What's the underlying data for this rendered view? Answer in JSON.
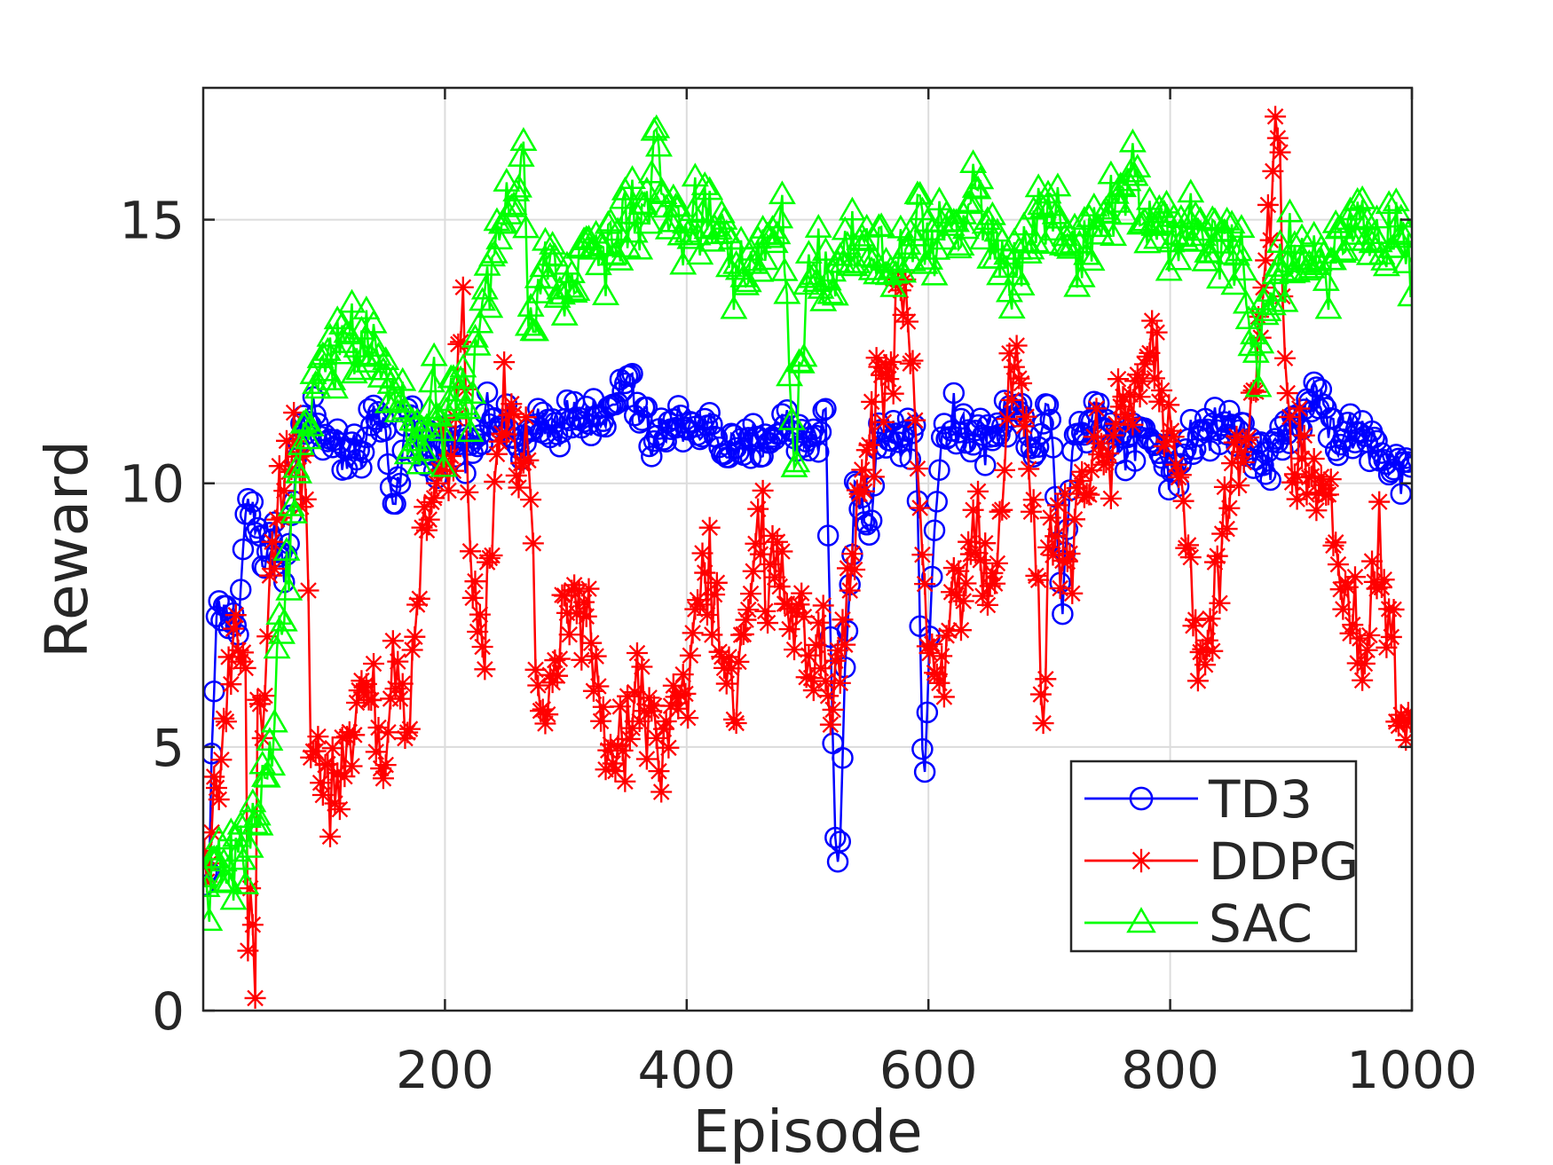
{
  "chart_data": {
    "type": "line",
    "xlabel": "Episode",
    "ylabel": "Reward",
    "xlim": [
      0,
      1000
    ],
    "ylim": [
      0,
      17.5
    ],
    "xticks": [
      200,
      400,
      600,
      800,
      1000
    ],
    "yticks": [
      0,
      5,
      10,
      15
    ],
    "xtick_labels": [
      "200",
      "400",
      "600",
      "800",
      "1000"
    ],
    "ytick_labels": [
      "0",
      "5",
      "10",
      "15"
    ],
    "grid": true,
    "legend_position": "bottom-right",
    "series": [
      {
        "name": "TD3",
        "color": "#0000ff",
        "marker": "circle",
        "anchors": [
          [
            1,
            2.3
          ],
          [
            5,
            3.0
          ],
          [
            8,
            5.5
          ],
          [
            11,
            7.5
          ],
          [
            20,
            7.5
          ],
          [
            30,
            7.3
          ],
          [
            35,
            9.5
          ],
          [
            40,
            9.8
          ],
          [
            50,
            8.5
          ],
          [
            60,
            9.0
          ],
          [
            70,
            8.5
          ],
          [
            80,
            11.0
          ],
          [
            90,
            11.3
          ],
          [
            100,
            10.8
          ],
          [
            110,
            10.5
          ],
          [
            120,
            10.7
          ],
          [
            130,
            10.2
          ],
          [
            140,
            11.5
          ],
          [
            150,
            11.0
          ],
          [
            160,
            9.6
          ],
          [
            170,
            11.5
          ],
          [
            180,
            10.5
          ],
          [
            200,
            10.8
          ],
          [
            220,
            10.8
          ],
          [
            240,
            11.3
          ],
          [
            260,
            10.7
          ],
          [
            280,
            11.0
          ],
          [
            300,
            11.2
          ],
          [
            310,
            11.5
          ],
          [
            330,
            11.0
          ],
          [
            350,
            12.0
          ],
          [
            370,
            10.8
          ],
          [
            400,
            11.2
          ],
          [
            420,
            11.0
          ],
          [
            440,
            10.5
          ],
          [
            460,
            10.8
          ],
          [
            480,
            11.1
          ],
          [
            500,
            10.8
          ],
          [
            515,
            11.2
          ],
          [
            520,
            6.0
          ],
          [
            524,
            2.2
          ],
          [
            527,
            3.2
          ],
          [
            530,
            6.0
          ],
          [
            540,
            10.2
          ],
          [
            550,
            9.0
          ],
          [
            560,
            11.0
          ],
          [
            580,
            10.8
          ],
          [
            590,
            11.0
          ],
          [
            595,
            5.0
          ],
          [
            598,
            4.5
          ],
          [
            600,
            7.0
          ],
          [
            610,
            11.0
          ],
          [
            630,
            11.1
          ],
          [
            650,
            10.8
          ],
          [
            670,
            11.4
          ],
          [
            690,
            10.8
          ],
          [
            700,
            11.5
          ],
          [
            710,
            7.8
          ],
          [
            720,
            11.0
          ],
          [
            740,
            11.3
          ],
          [
            760,
            10.8
          ],
          [
            780,
            11.1
          ],
          [
            800,
            10.2
          ],
          [
            820,
            10.8
          ],
          [
            840,
            11.2
          ],
          [
            860,
            11.0
          ],
          [
            880,
            10.5
          ],
          [
            900,
            11.0
          ],
          [
            920,
            11.8
          ],
          [
            940,
            10.8
          ],
          [
            960,
            11.0
          ],
          [
            980,
            10.2
          ],
          [
            1000,
            10.3
          ]
        ],
        "noise": 0.45,
        "step": 2
      },
      {
        "name": "DDPG",
        "color": "#ff0000",
        "marker": "asterisk",
        "anchors": [
          [
            1,
            2.3
          ],
          [
            8,
            3.0
          ],
          [
            15,
            5.5
          ],
          [
            25,
            6.5
          ],
          [
            30,
            7.0
          ],
          [
            35,
            6.5
          ],
          [
            38,
            -1.5
          ],
          [
            40,
            6.0
          ],
          [
            42,
            -1.5
          ],
          [
            45,
            5.0
          ],
          [
            55,
            8.0
          ],
          [
            65,
            10.0
          ],
          [
            75,
            11.0
          ],
          [
            85,
            10.0
          ],
          [
            90,
            5.0
          ],
          [
            100,
            4.5
          ],
          [
            110,
            4.0
          ],
          [
            120,
            4.8
          ],
          [
            130,
            5.5
          ],
          [
            140,
            6.0
          ],
          [
            150,
            4.5
          ],
          [
            160,
            7.0
          ],
          [
            170,
            5.0
          ],
          [
            180,
            9.0
          ],
          [
            190,
            9.5
          ],
          [
            200,
            10.2
          ],
          [
            210,
            11.5
          ],
          [
            215,
            13.3
          ],
          [
            220,
            9.0
          ],
          [
            230,
            6.8
          ],
          [
            240,
            9.5
          ],
          [
            250,
            11.5
          ],
          [
            260,
            10.5
          ],
          [
            270,
            11.0
          ],
          [
            275,
            6.5
          ],
          [
            285,
            6.2
          ],
          [
            290,
            6.0
          ],
          [
            300,
            7.8
          ],
          [
            310,
            7.5
          ],
          [
            320,
            7.0
          ],
          [
            330,
            5.8
          ],
          [
            340,
            4.1
          ],
          [
            350,
            5.5
          ],
          [
            360,
            6.2
          ],
          [
            370,
            5.5
          ],
          [
            380,
            4.8
          ],
          [
            390,
            6.5
          ],
          [
            400,
            5.5
          ],
          [
            410,
            8.5
          ],
          [
            420,
            8.0
          ],
          [
            430,
            6.5
          ],
          [
            440,
            5.5
          ],
          [
            450,
            7.5
          ],
          [
            460,
            9.5
          ],
          [
            470,
            8.0
          ],
          [
            480,
            8.0
          ],
          [
            490,
            7.0
          ],
          [
            500,
            6.5
          ],
          [
            510,
            7.0
          ],
          [
            520,
            6.5
          ],
          [
            530,
            7.5
          ],
          [
            540,
            9.0
          ],
          [
            550,
            11.0
          ],
          [
            560,
            11.5
          ],
          [
            570,
            12.5
          ],
          [
            580,
            13.5
          ],
          [
            590,
            11.0
          ],
          [
            600,
            7.0
          ],
          [
            610,
            6.5
          ],
          [
            620,
            7.5
          ],
          [
            630,
            8.0
          ],
          [
            640,
            9.5
          ],
          [
            650,
            8.0
          ],
          [
            660,
            9.5
          ],
          [
            670,
            12.5
          ],
          [
            680,
            11.0
          ],
          [
            690,
            8.0
          ],
          [
            695,
            5.5
          ],
          [
            700,
            9.5
          ],
          [
            710,
            8.5
          ],
          [
            720,
            8.5
          ],
          [
            730,
            10.5
          ],
          [
            740,
            11.0
          ],
          [
            750,
            10.0
          ],
          [
            760,
            12.0
          ],
          [
            770,
            11.5
          ],
          [
            780,
            12.5
          ],
          [
            790,
            12.0
          ],
          [
            800,
            11.5
          ],
          [
            810,
            9.5
          ],
          [
            820,
            7.5
          ],
          [
            830,
            6.5
          ],
          [
            840,
            8.5
          ],
          [
            850,
            10.0
          ],
          [
            860,
            10.8
          ],
          [
            870,
            11.5
          ],
          [
            880,
            14.5
          ],
          [
            885,
            16.5
          ],
          [
            890,
            17.0
          ],
          [
            895,
            12.5
          ],
          [
            900,
            10.5
          ],
          [
            910,
            10.2
          ],
          [
            920,
            9.5
          ],
          [
            930,
            10.0
          ],
          [
            940,
            8.5
          ],
          [
            950,
            8.0
          ],
          [
            960,
            6.5
          ],
          [
            970,
            9.0
          ],
          [
            980,
            8.0
          ],
          [
            990,
            5.5
          ],
          [
            995,
            5.0
          ],
          [
            1000,
            6.5
          ]
        ],
        "noise": 1.0,
        "step": 2
      },
      {
        "name": "SAC",
        "color": "#00ff00",
        "marker": "triangle",
        "anchors": [
          [
            1,
            2.3
          ],
          [
            10,
            2.6
          ],
          [
            20,
            2.6
          ],
          [
            30,
            2.8
          ],
          [
            40,
            3.2
          ],
          [
            50,
            4.5
          ],
          [
            60,
            6.0
          ],
          [
            70,
            8.5
          ],
          [
            80,
            10.5
          ],
          [
            90,
            12.0
          ],
          [
            100,
            12.0
          ],
          [
            110,
            12.5
          ],
          [
            120,
            13.0
          ],
          [
            130,
            12.5
          ],
          [
            140,
            12.8
          ],
          [
            150,
            12.0
          ],
          [
            160,
            11.5
          ],
          [
            170,
            10.5
          ],
          [
            180,
            11.0
          ],
          [
            190,
            11.5
          ],
          [
            200,
            11.0
          ],
          [
            210,
            12.0
          ],
          [
            220,
            11.5
          ],
          [
            230,
            13.0
          ],
          [
            240,
            14.5
          ],
          [
            250,
            15.0
          ],
          [
            260,
            15.5
          ],
          [
            265,
            16.5
          ],
          [
            270,
            12.5
          ],
          [
            280,
            14.0
          ],
          [
            290,
            14.5
          ],
          [
            300,
            13.5
          ],
          [
            320,
            14.5
          ],
          [
            340,
            14.5
          ],
          [
            360,
            15.0
          ],
          [
            375,
            16.0
          ],
          [
            380,
            15.5
          ],
          [
            400,
            14.8
          ],
          [
            420,
            15.2
          ],
          [
            440,
            14.0
          ],
          [
            460,
            14.5
          ],
          [
            480,
            14.8
          ],
          [
            490,
            10.0
          ],
          [
            500,
            14.5
          ],
          [
            510,
            14.2
          ],
          [
            520,
            13.8
          ],
          [
            530,
            14.5
          ],
          [
            550,
            14.5
          ],
          [
            570,
            14.0
          ],
          [
            590,
            15.0
          ],
          [
            610,
            14.5
          ],
          [
            630,
            15.0
          ],
          [
            640,
            16.0
          ],
          [
            650,
            14.5
          ],
          [
            670,
            14.0
          ],
          [
            690,
            15.0
          ],
          [
            700,
            15.5
          ],
          [
            720,
            14.5
          ],
          [
            740,
            15.0
          ],
          [
            760,
            15.5
          ],
          [
            770,
            16.0
          ],
          [
            780,
            15.0
          ],
          [
            800,
            15.0
          ],
          [
            820,
            14.8
          ],
          [
            840,
            14.5
          ],
          [
            860,
            14.5
          ],
          [
            870,
            12.0
          ],
          [
            875,
            12.5
          ],
          [
            880,
            13.5
          ],
          [
            890,
            14.0
          ],
          [
            910,
            14.5
          ],
          [
            930,
            14.2
          ],
          [
            950,
            15.0
          ],
          [
            970,
            14.5
          ],
          [
            990,
            14.8
          ],
          [
            1000,
            13.8
          ]
        ],
        "noise": 0.75,
        "step": 2
      }
    ]
  }
}
